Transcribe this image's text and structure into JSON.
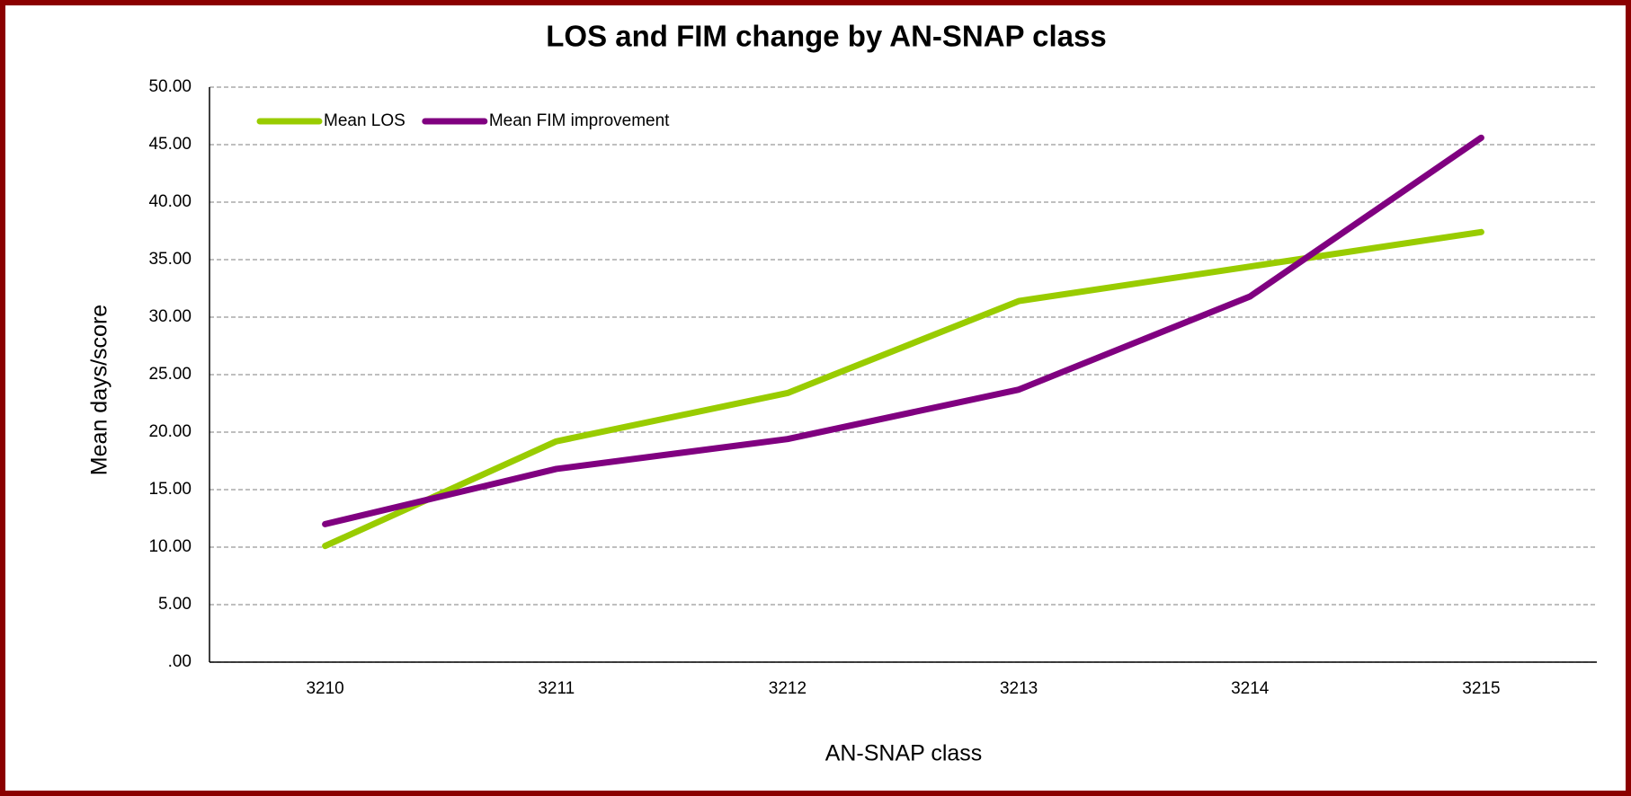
{
  "chart_data": {
    "type": "line",
    "title": "LOS and FIM change by AN-SNAP class",
    "x_label": "AN-SNAP class",
    "y_label": "Mean days/score",
    "categories": [
      "3210",
      "3211",
      "3212",
      "3213",
      "3214",
      "3215"
    ],
    "series": [
      {
        "name": "Mean LOS",
        "color": "#99cc00",
        "values": [
          10.1,
          19.2,
          23.4,
          31.4,
          34.4,
          37.4
        ]
      },
      {
        "name": "Mean FIM improvement",
        "color": "#800080",
        "values": [
          12.0,
          16.8,
          19.4,
          23.7,
          31.8,
          45.6
        ]
      }
    ],
    "ylim": [
      0,
      50
    ],
    "yticks": [
      {
        "value": 0,
        "label": ".00"
      },
      {
        "value": 5,
        "label": "5.00"
      },
      {
        "value": 10,
        "label": "10.00"
      },
      {
        "value": 15,
        "label": "15.00"
      },
      {
        "value": 20,
        "label": "20.00"
      },
      {
        "value": 25,
        "label": "25.00"
      },
      {
        "value": 30,
        "label": "30.00"
      },
      {
        "value": 35,
        "label": "35.00"
      },
      {
        "value": 40,
        "label": "40.00"
      },
      {
        "value": 45,
        "label": "45.00"
      },
      {
        "value": 50,
        "label": "50.00"
      }
    ],
    "grid": true,
    "legend": "top-left"
  }
}
